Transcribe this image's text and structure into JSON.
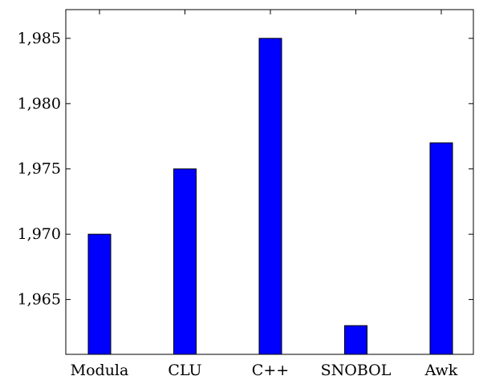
{
  "chart_data": {
    "type": "bar",
    "title": "",
    "xlabel": "",
    "ylabel": "",
    "categories": [
      "Modula",
      "CLU",
      "C++",
      "SNOBOL",
      "Awk"
    ],
    "series": [
      {
        "values": [
          1970,
          1975,
          1985,
          1963,
          1977
        ]
      }
    ],
    "ylim": [
      1960.8,
      1987.2
    ],
    "yticks": [
      1965,
      1970,
      1975,
      1980,
      1985
    ],
    "ytick_labels": [
      "1,965",
      "1,970",
      "1,975",
      "1,980",
      "1,985"
    ],
    "grid": false,
    "bar_color": "#0000ff",
    "bar_edge_color": "#000000"
  }
}
